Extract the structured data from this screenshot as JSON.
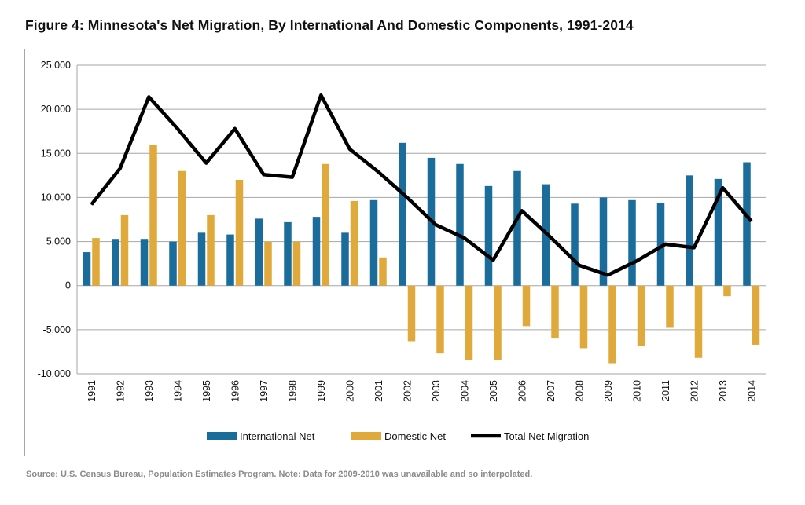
{
  "title": "Figure 4: Minnesota's Net Migration, By International And Domestic Components, 1991-2014",
  "source": "Source: U.S. Census Bureau, Population Estimates Program. Note: Data for 2009-2010 was unavailable and so interpolated.",
  "colors": {
    "international": "#1a6d9b",
    "domestic": "#e0a93b",
    "total": "#000000",
    "grid": "#a6a6a6"
  },
  "chart_data": {
    "type": "bar",
    "categories": [
      "1991",
      "1992",
      "1993",
      "1994",
      "1995",
      "1996",
      "1997",
      "1998",
      "1999",
      "2000",
      "2001",
      "2002",
      "2003",
      "2004",
      "2005",
      "2006",
      "2007",
      "2008",
      "2009",
      "2010",
      "2011",
      "2012",
      "2013",
      "2014"
    ],
    "series": [
      {
        "name": "International Net",
        "type": "bar",
        "values": [
          3800,
          5300,
          5300,
          5000,
          6000,
          5800,
          7600,
          7200,
          7800,
          6000,
          9700,
          16200,
          14500,
          13800,
          11300,
          13000,
          11500,
          9300,
          10000,
          9700,
          9400,
          12500,
          12100,
          14000
        ]
      },
      {
        "name": "Domestic Net",
        "type": "bar",
        "values": [
          5400,
          8000,
          16000,
          13000,
          8000,
          12000,
          5000,
          5000,
          13800,
          9600,
          3200,
          -6300,
          -7700,
          -8400,
          -8400,
          -4600,
          -6000,
          -7100,
          -8800,
          -6800,
          -4700,
          -8200,
          -1200,
          -6700
        ]
      },
      {
        "name": "Total Net Migration",
        "type": "line",
        "values": [
          9200,
          13300,
          21400,
          17800,
          13900,
          17800,
          12600,
          12300,
          21600,
          15500,
          12900,
          10000,
          6900,
          5400,
          2900,
          8500,
          5500,
          2300,
          1200,
          2800,
          4700,
          4300,
          11100,
          7300
        ]
      }
    ],
    "yticks": [
      "25,000",
      "20,000",
      "15,000",
      "10,000",
      "5,000",
      "0",
      "-5,000",
      "-10,000"
    ],
    "ylim": [
      -10000,
      25000
    ],
    "grid": true,
    "legend": "bottom"
  }
}
